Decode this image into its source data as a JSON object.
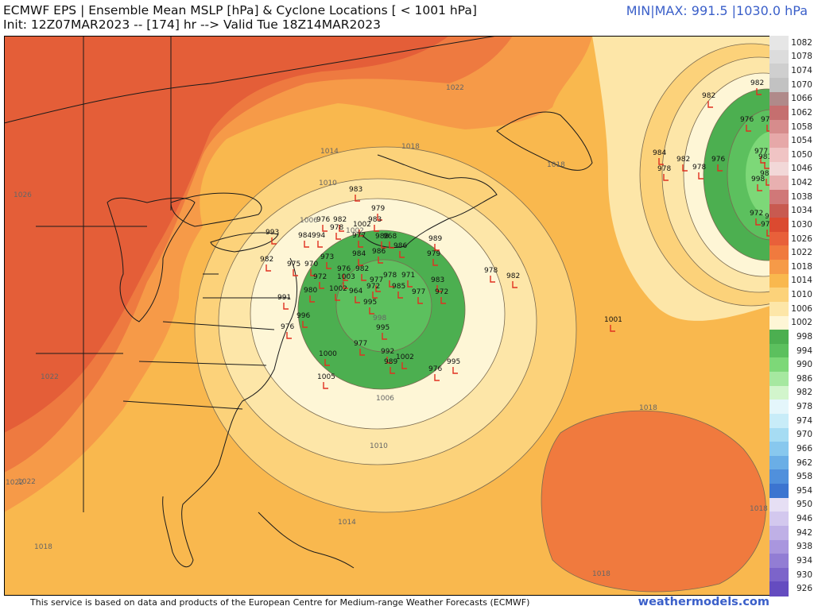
{
  "header": {
    "title_line_1": "ECMWF EPS | Ensemble Mean MSLP [hPa] & Cyclone Locations [ < 1001 hPa]",
    "title_line_2": "Init: 12Z07MAR2023 -- [174] hr --> Valid Tue 18Z14MAR2023",
    "minmax": "MIN|MAX: 991.5 |1030.0 hPa"
  },
  "footer": {
    "credit": "This service is based on data and products of the European Centre for Medium-range Weather Forecasts (ECMWF)",
    "site": "weathermodels.com"
  },
  "colors": {
    "land_outline": "#1a1a1a",
    "isobar": "#7a6a50",
    "low_marker": "#e03020",
    "link_blue": "#3a5fc9"
  },
  "colorbar": {
    "levels": [
      {
        "label": "1082",
        "color": "#e6e6e6"
      },
      {
        "label": "1078",
        "color": "#dcdcdc"
      },
      {
        "label": "1074",
        "color": "#cfcfcf"
      },
      {
        "label": "1070",
        "color": "#c2c2c2"
      },
      {
        "label": "1066",
        "color": "#b08a8a"
      },
      {
        "label": "1062",
        "color": "#c56f6f"
      },
      {
        "label": "1058",
        "color": "#d68c8c"
      },
      {
        "label": "1054",
        "color": "#e6a8a8"
      },
      {
        "label": "1050",
        "color": "#f0c4c4"
      },
      {
        "label": "1046",
        "color": "#f2d8d8"
      },
      {
        "label": "1042",
        "color": "#e8b0b0"
      },
      {
        "label": "1038",
        "color": "#d07878"
      },
      {
        "label": "1034",
        "color": "#c85a50"
      },
      {
        "label": "1030",
        "color": "#db4a30"
      },
      {
        "label": "1026",
        "color": "#e8603a"
      },
      {
        "label": "1022",
        "color": "#f07a3e"
      },
      {
        "label": "1018",
        "color": "#f69a48"
      },
      {
        "label": "1014",
        "color": "#f9b84e"
      },
      {
        "label": "1010",
        "color": "#fcd27a"
      },
      {
        "label": "1006",
        "color": "#fde6a8"
      },
      {
        "label": "1002",
        "color": "#fef6d6"
      },
      {
        "label": "998",
        "color": "#4caf50"
      },
      {
        "label": "994",
        "color": "#5cc05e"
      },
      {
        "label": "990",
        "color": "#7dd878"
      },
      {
        "label": "986",
        "color": "#a6e8a0"
      },
      {
        "label": "982",
        "color": "#d2f5cc"
      },
      {
        "label": "978",
        "color": "#e4f6fb"
      },
      {
        "label": "974",
        "color": "#c8ecf8"
      },
      {
        "label": "970",
        "color": "#a6dcf3"
      },
      {
        "label": "966",
        "color": "#88c8ee"
      },
      {
        "label": "962",
        "color": "#6aaee6"
      },
      {
        "label": "958",
        "color": "#5090dc"
      },
      {
        "label": "954",
        "color": "#3c74d0"
      },
      {
        "label": "950",
        "color": "#e6dff4"
      },
      {
        "label": "946",
        "color": "#d3c8ee"
      },
      {
        "label": "942",
        "color": "#bfb0e6"
      },
      {
        "label": "938",
        "color": "#a996de"
      },
      {
        "label": "934",
        "color": "#927dd4"
      },
      {
        "label": "930",
        "color": "#7c64ca"
      },
      {
        "label": "926",
        "color": "#654cc0"
      }
    ]
  },
  "isobar_labels": [
    "1022",
    "1014",
    "1010",
    "1018",
    "1006",
    "1002",
    "998",
    "1006",
    "1010",
    "1014",
    "1018",
    "1018",
    "1018",
    "1022",
    "1026",
    "1022",
    "1022",
    "1018",
    "1018"
  ],
  "cyclone_lows": [
    "982",
    "976",
    "974",
    "982",
    "83",
    "982",
    "978",
    "976",
    "978",
    "977",
    "981",
    "984",
    "972",
    "972",
    "982",
    "988",
    "998",
    "983",
    "979",
    "983",
    "993",
    "976",
    "982",
    "978",
    "1002",
    "984",
    "994",
    "977",
    "988",
    "968",
    "986",
    "989",
    "983",
    "979",
    "978",
    "982",
    "976",
    "977",
    "986",
    "984",
    "973",
    "970",
    "975",
    "972",
    "976",
    "1003",
    "982",
    "978",
    "971",
    "982",
    "991",
    "980",
    "1002",
    "964",
    "972",
    "985",
    "977",
    "972",
    "995",
    "996",
    "995",
    "976",
    "977",
    "992",
    "1002",
    "1000",
    "989",
    "995",
    "1005",
    "1001"
  ]
}
